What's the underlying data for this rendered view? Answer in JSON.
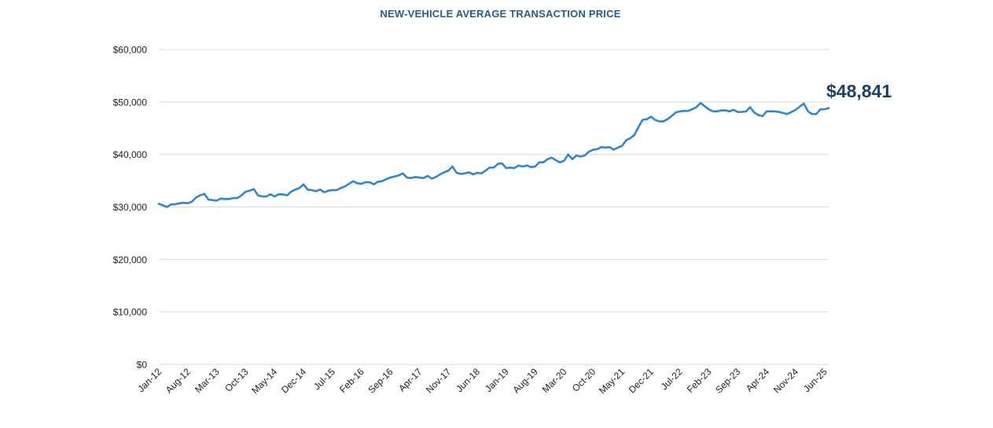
{
  "chart_data": {
    "type": "line",
    "title": "NEW-VEHICLE AVERAGE TRANSACTION PRICE",
    "xlabel": "",
    "ylabel": "",
    "ylim": [
      0,
      60000
    ],
    "yticks": [
      0,
      10000,
      20000,
      30000,
      40000,
      50000,
      60000
    ],
    "ytick_labels": [
      "$0",
      "$10,000",
      "$20,000",
      "$30,000",
      "$40,000",
      "$50,000",
      "$60,000"
    ],
    "xtick_labels": [
      "Jan-12",
      "Aug-12",
      "Mar-13",
      "Oct-13",
      "May-14",
      "Dec-14",
      "Jul-15",
      "Feb-16",
      "Sep-16",
      "Apr-17",
      "Nov-17",
      "Jun-18",
      "Jan-19",
      "Aug-19",
      "Mar-20",
      "Oct-20",
      "May-21",
      "Dec-21",
      "Jul-22",
      "Feb-23",
      "Sep-23",
      "Apr-24",
      "Nov-24",
      "Jun-25"
    ],
    "months_per_tick": 7,
    "grid": true,
    "line_color": "#3287c9",
    "title_color": "#1f5f8b",
    "annotation_color": "#1f3f64",
    "end_annotation": "$48,841",
    "series": [
      {
        "name": "Average Transaction Price",
        "values": [
          30600,
          30300,
          30000,
          30500,
          30500,
          30700,
          30800,
          30700,
          31000,
          31800,
          32200,
          32500,
          31400,
          31300,
          31200,
          31600,
          31500,
          31500,
          31700,
          31700,
          32200,
          32900,
          33100,
          33400,
          32200,
          32000,
          32000,
          32400,
          32000,
          32400,
          32400,
          32200,
          32900,
          33300,
          33600,
          34300,
          33300,
          33200,
          33000,
          33300,
          32800,
          33100,
          33200,
          33200,
          33600,
          33900,
          34400,
          34900,
          34500,
          34400,
          34700,
          34700,
          34300,
          34800,
          34900,
          35300,
          35600,
          35800,
          36000,
          36400,
          35600,
          35500,
          35700,
          35600,
          35500,
          35900,
          35400,
          35700,
          36200,
          36600,
          36900,
          37700,
          36500,
          36300,
          36400,
          36600,
          36200,
          36500,
          36400,
          36900,
          37500,
          37500,
          38200,
          38300,
          37400,
          37500,
          37400,
          37900,
          37700,
          37900,
          37600,
          37700,
          38500,
          38500,
          39100,
          39400,
          38900,
          38500,
          38800,
          40000,
          39100,
          39800,
          39600,
          39800,
          40500,
          40900,
          41000,
          41400,
          41300,
          41400,
          40900,
          41300,
          41600,
          42700,
          43100,
          43700,
          45200,
          46600,
          46700,
          47200,
          46600,
          46300,
          46300,
          46700,
          47300,
          48000,
          48200,
          48300,
          48300,
          48600,
          49000,
          49800,
          49200,
          48600,
          48200,
          48200,
          48400,
          48400,
          48200,
          48500,
          48100,
          48100,
          48200,
          49000,
          48000,
          47500,
          47300,
          48200,
          48200,
          48200,
          48100,
          47900,
          47700,
          48100,
          48500,
          49100,
          49700,
          48200,
          47700,
          47700,
          48600,
          48600,
          48841
        ]
      }
    ]
  }
}
